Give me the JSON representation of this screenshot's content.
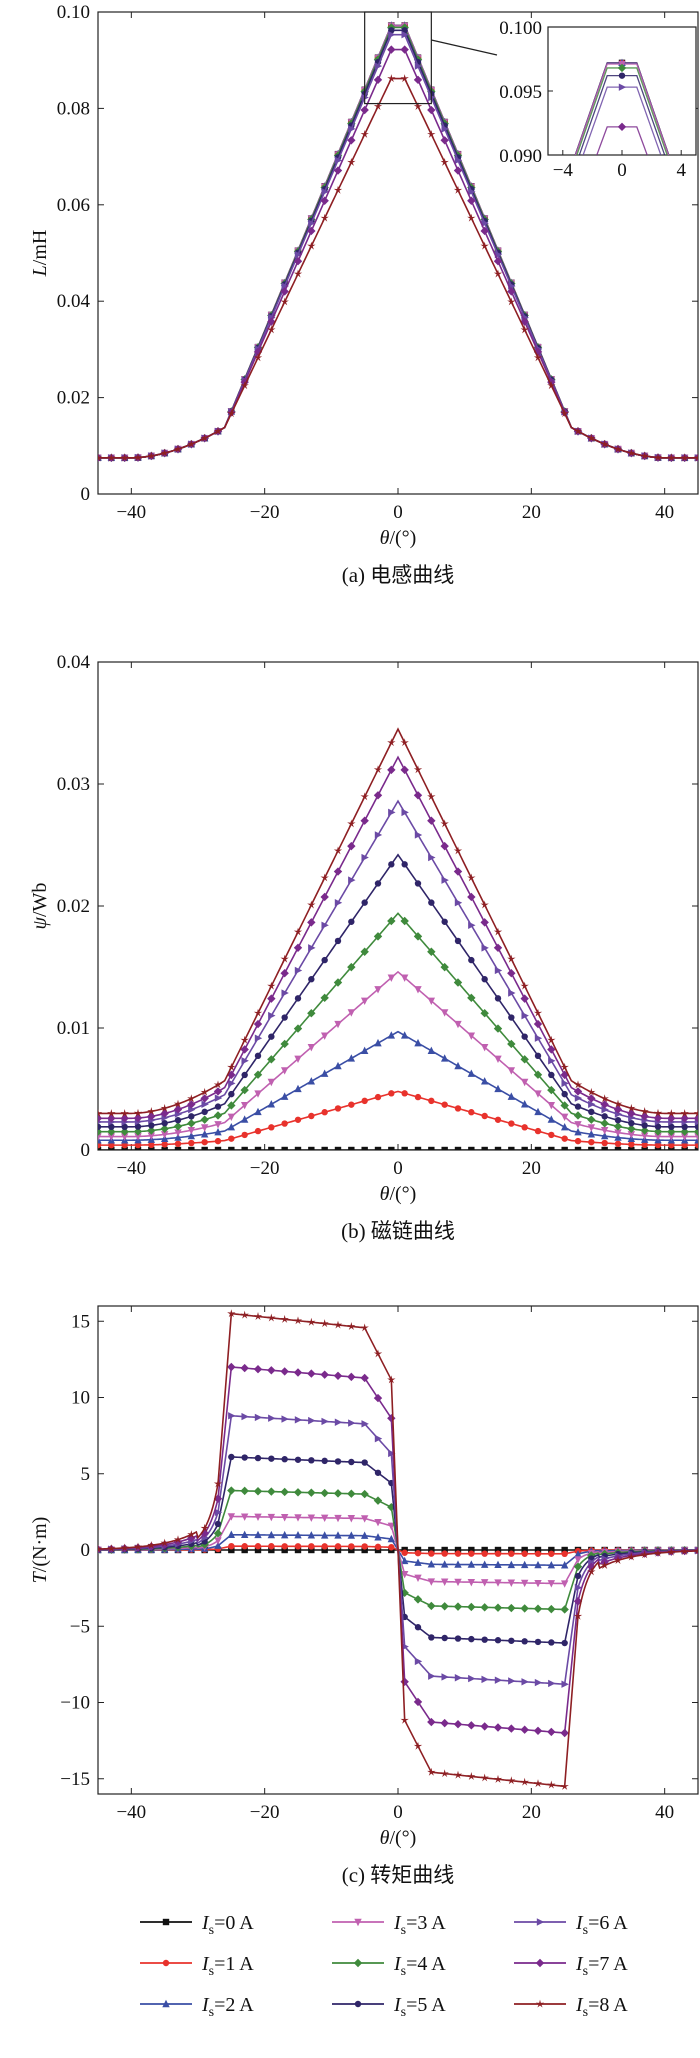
{
  "colors": {
    "Is0": "#111111",
    "Is1": "#e8322c",
    "Is2": "#3a4ea5",
    "Is3": "#c060b0",
    "Is4": "#3f8a3c",
    "Is5": "#2f2568",
    "Is6": "#6b4aa5",
    "Is7": "#7a2a8c",
    "Is8": "#8e1f23"
  },
  "legend": {
    "entries": [
      {
        "i": "I",
        "sub": "s",
        "rest": "=0 A"
      },
      {
        "i": "I",
        "sub": "s",
        "rest": "=3 A"
      },
      {
        "i": "I",
        "sub": "s",
        "rest": "=6 A"
      },
      {
        "i": "I",
        "sub": "s",
        "rest": "=1 A"
      },
      {
        "i": "I",
        "sub": "s",
        "rest": "=4 A"
      },
      {
        "i": "I",
        "sub": "s",
        "rest": "=7 A"
      },
      {
        "i": "I",
        "sub": "s",
        "rest": "=2 A"
      },
      {
        "i": "I",
        "sub": "s",
        "rest": "=5 A"
      },
      {
        "i": "I",
        "sub": "s",
        "rest": "=8 A"
      }
    ],
    "placement": "bottom"
  },
  "chart_data": [
    {
      "type": "line",
      "caption": "(a) 电感曲线",
      "xlabel": "θ/(°)",
      "ylabel": "L/mH",
      "xlim": [
        -45,
        45
      ],
      "ylim": [
        0,
        0.1
      ],
      "xticks": [
        "-40",
        "-20",
        "0",
        "20",
        "40"
      ],
      "yticks": [
        "0",
        "0.02",
        "0.04",
        "0.06",
        "0.08",
        "0.10"
      ],
      "grid": false,
      "series": [
        {
          "name": "Is=0 A",
          "peak": 0.0972
        },
        {
          "name": "Is=1 A",
          "peak": 0.0972
        },
        {
          "name": "Is=2 A",
          "peak": 0.0972
        },
        {
          "name": "Is=3 A",
          "peak": 0.0971
        },
        {
          "name": "Is=4 A",
          "peak": 0.0968
        },
        {
          "name": "Is=5 A",
          "peak": 0.0962
        },
        {
          "name": "Is=6 A",
          "peak": 0.0953
        },
        {
          "name": "Is=7 A",
          "peak": 0.0922
        },
        {
          "name": "Is=8 A",
          "peak": 0.0862
        }
      ],
      "base": 0.0075,
      "inset": {
        "xlim": [
          -5,
          5
        ],
        "ylim": [
          0.09,
          0.1
        ],
        "xticks": [
          "-4",
          "0",
          "4"
        ],
        "yticks": [
          "0.090",
          "0.095",
          "0.100"
        ]
      }
    },
    {
      "type": "line",
      "caption": "(b) 磁链曲线",
      "xlabel": "θ/(°)",
      "ylabel": "ψ/Wb",
      "xlim": [
        -45,
        45
      ],
      "ylim": [
        0,
        0.04
      ],
      "xticks": [
        "-40",
        "-20",
        "0",
        "20",
        "40"
      ],
      "yticks": [
        "0",
        "0.01",
        "0.02",
        "0.03",
        "0.04"
      ],
      "grid": false,
      "series": [
        {
          "name": "Is=0 A",
          "peak": 0.0,
          "base": 0.0
        },
        {
          "name": "Is=1 A",
          "peak": 0.0048,
          "base": 0.0004
        },
        {
          "name": "Is=2 A",
          "peak": 0.0097,
          "base": 0.0008
        },
        {
          "name": "Is=3 A",
          "peak": 0.0146,
          "base": 0.0011
        },
        {
          "name": "Is=4 A",
          "peak": 0.0194,
          "base": 0.0015
        },
        {
          "name": "Is=5 A",
          "peak": 0.0242,
          "base": 0.0019
        },
        {
          "name": "Is=6 A",
          "peak": 0.0286,
          "base": 0.0023
        },
        {
          "name": "Is=7 A",
          "peak": 0.0322,
          "base": 0.0026
        },
        {
          "name": "Is=8 A",
          "peak": 0.0345,
          "base": 0.003
        }
      ]
    },
    {
      "type": "line",
      "caption": "(c) 转矩曲线",
      "xlabel": "θ/(°)",
      "ylabel": "T/(N·m)",
      "xlim": [
        -45,
        45
      ],
      "ylim": [
        -16,
        16
      ],
      "xticks": [
        "-40",
        "-20",
        "0",
        "20",
        "40"
      ],
      "yticks": [
        "-15",
        "-10",
        "-5",
        "0",
        "5",
        "10",
        "15"
      ],
      "grid": false,
      "series": [
        {
          "name": "Is=0 A",
          "plateau": 0.0
        },
        {
          "name": "Is=1 A",
          "plateau": 0.25
        },
        {
          "name": "Is=2 A",
          "plateau": 1.0
        },
        {
          "name": "Is=3 A",
          "plateau": 2.2
        },
        {
          "name": "Is=4 A",
          "plateau": 3.9
        },
        {
          "name": "Is=5 A",
          "plateau": 6.1
        },
        {
          "name": "Is=6 A",
          "plateau": 8.8
        },
        {
          "name": "Is=7 A",
          "plateau": 12.0
        },
        {
          "name": "Is=8 A",
          "plateau": 15.5
        }
      ]
    }
  ]
}
